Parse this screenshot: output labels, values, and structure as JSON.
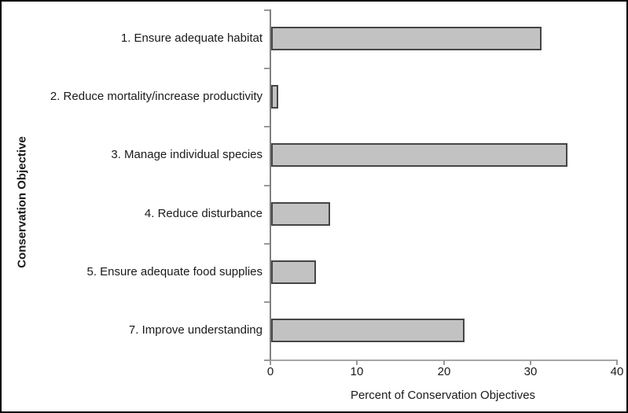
{
  "chart_data": {
    "type": "bar",
    "orientation": "horizontal",
    "title": "",
    "xlabel": "Percent of Conservation Objectives",
    "ylabel": "Conservation Objective",
    "categories": [
      "1. Ensure adequate habitat",
      "2. Reduce mortality/increase productivity",
      "3. Manage individual species",
      "4. Reduce disturbance",
      "5. Ensure adequate food supplies",
      "7. Improve understanding"
    ],
    "values": [
      31.2,
      0.8,
      34.2,
      6.8,
      5.2,
      22.3
    ],
    "xlim": [
      0,
      40
    ],
    "xticks": [
      0,
      10,
      20,
      30,
      40
    ],
    "xtick_labels": [
      "0",
      "10",
      "20",
      "30",
      "40"
    ],
    "grid": false,
    "legend": false,
    "colors": {
      "bar_fill": "#c2c2c2",
      "bar_border": "#454545",
      "axis_line": "#808080",
      "tick": "#999999",
      "text": "#1a1a1a",
      "background": "#ffffff",
      "frame_border": "#000000"
    }
  }
}
